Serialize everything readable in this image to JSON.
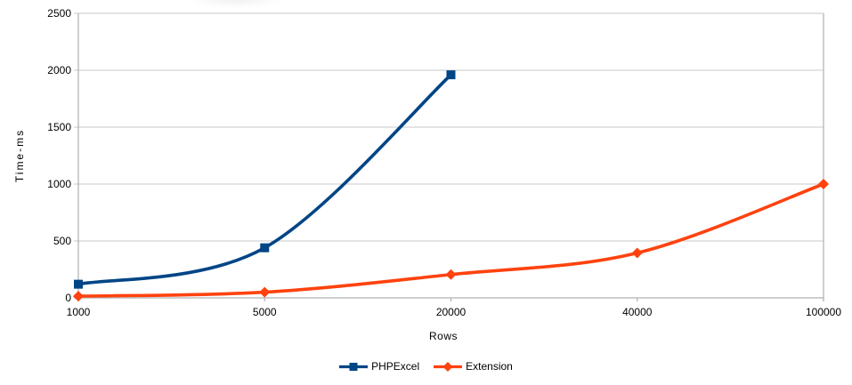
{
  "chart_data": {
    "type": "line",
    "title": "",
    "xlabel": "Rows",
    "ylabel": "Time-ms",
    "categories": [
      "1000",
      "5000",
      "20000",
      "40000",
      "100000"
    ],
    "y_ticks": [
      0,
      500,
      1000,
      1500,
      2000,
      2500
    ],
    "ylim": [
      0,
      2500
    ],
    "grid": "horizontal",
    "line_style": "smooth",
    "legend_position": "bottom-center",
    "series": [
      {
        "name": "PHPExcel",
        "color": "#004586",
        "marker": "square",
        "values": [
          120,
          440,
          1960,
          null,
          null
        ]
      },
      {
        "name": "Extension",
        "color": "#ff420e",
        "marker": "diamond",
        "values": [
          15,
          50,
          205,
          395,
          1000
        ]
      }
    ]
  },
  "colors": {
    "background": "#ffffff",
    "gridline": "#c9c9c9",
    "axis": "#b0b0b0",
    "text": "#000000"
  }
}
